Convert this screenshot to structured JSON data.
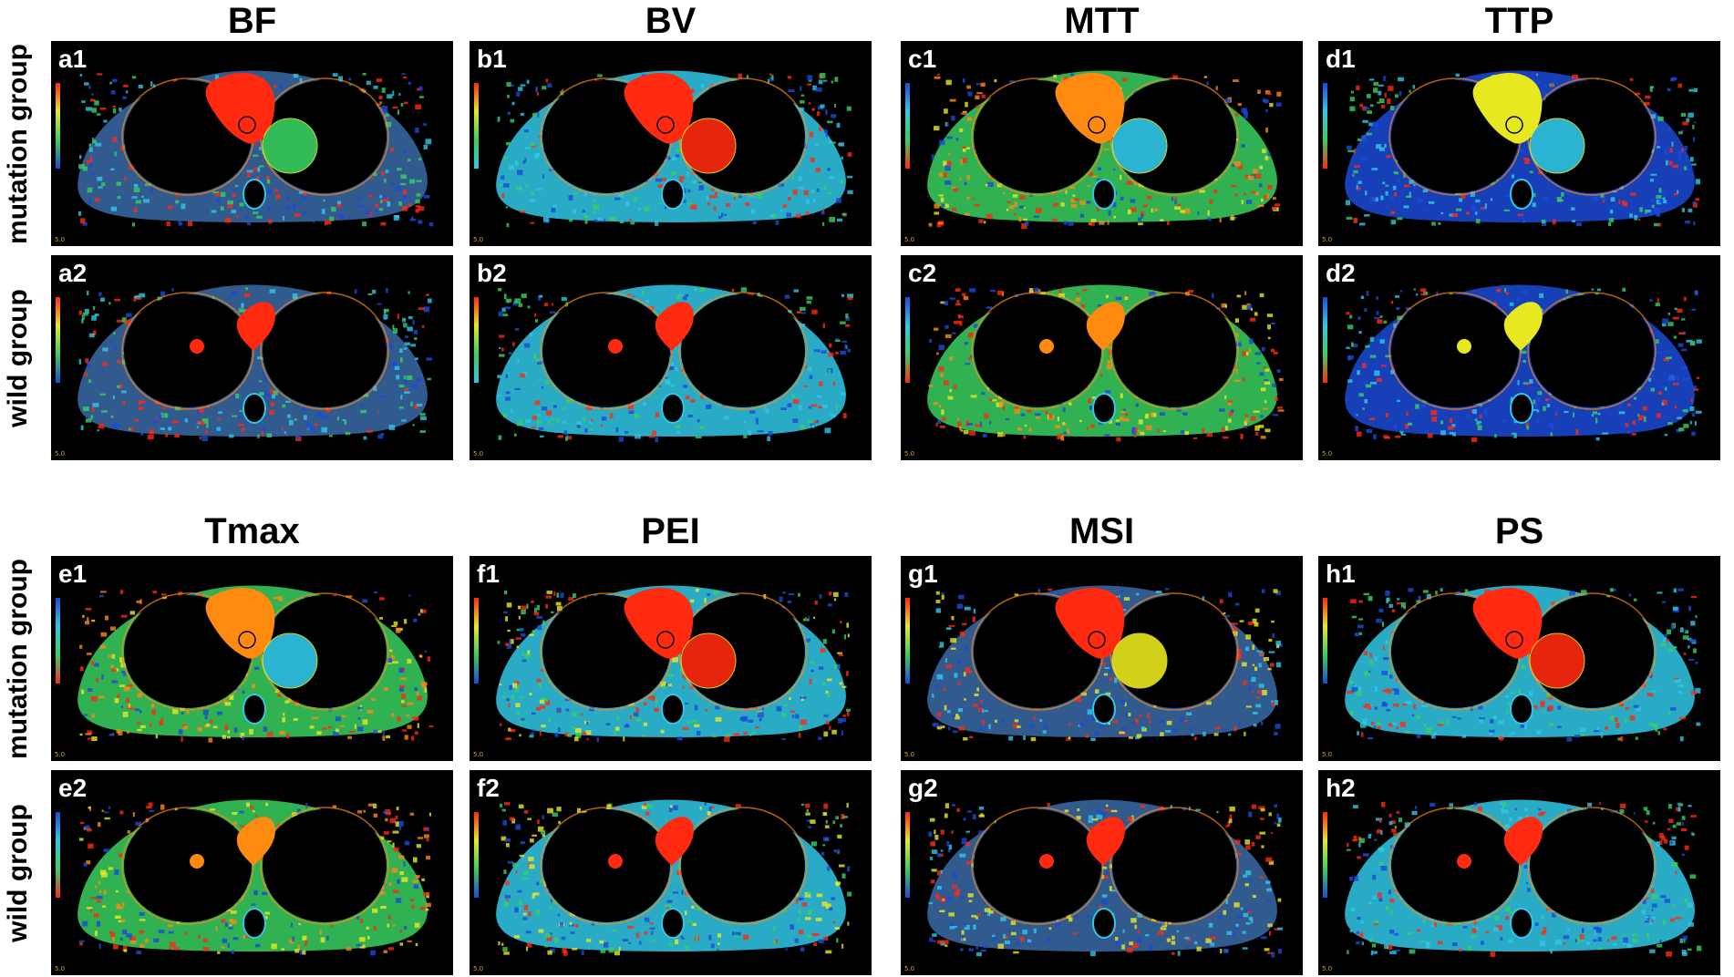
{
  "figure": {
    "top": {
      "titles": [
        "BF",
        "BV",
        "MTT",
        "TTP"
      ],
      "rows": [
        {
          "label": "mutation group",
          "letters": [
            "a1",
            "b1",
            "c1",
            "d1"
          ]
        },
        {
          "label": "wild group",
          "letters": [
            "a2",
            "b2",
            "c2",
            "d2"
          ]
        }
      ]
    },
    "bottom": {
      "titles": [
        "Tmax",
        "PEI",
        "MSI",
        "PS"
      ],
      "rows": [
        {
          "label": "mutation group",
          "letters": [
            "e1",
            "f1",
            "g1",
            "h1"
          ]
        },
        {
          "label": "wild group",
          "letters": [
            "e2",
            "f2",
            "g2",
            "h2"
          ]
        }
      ]
    },
    "panel_corner_label": "5.0",
    "colors": {
      "background": "#000000",
      "hot": "#ff2a10",
      "warm": "#ff8a10",
      "yellow": "#e8e820",
      "green": "#38d060",
      "cyan": "#30c8e8",
      "blue": "#1a4ad8",
      "body": "#3a6aa8"
    }
  }
}
